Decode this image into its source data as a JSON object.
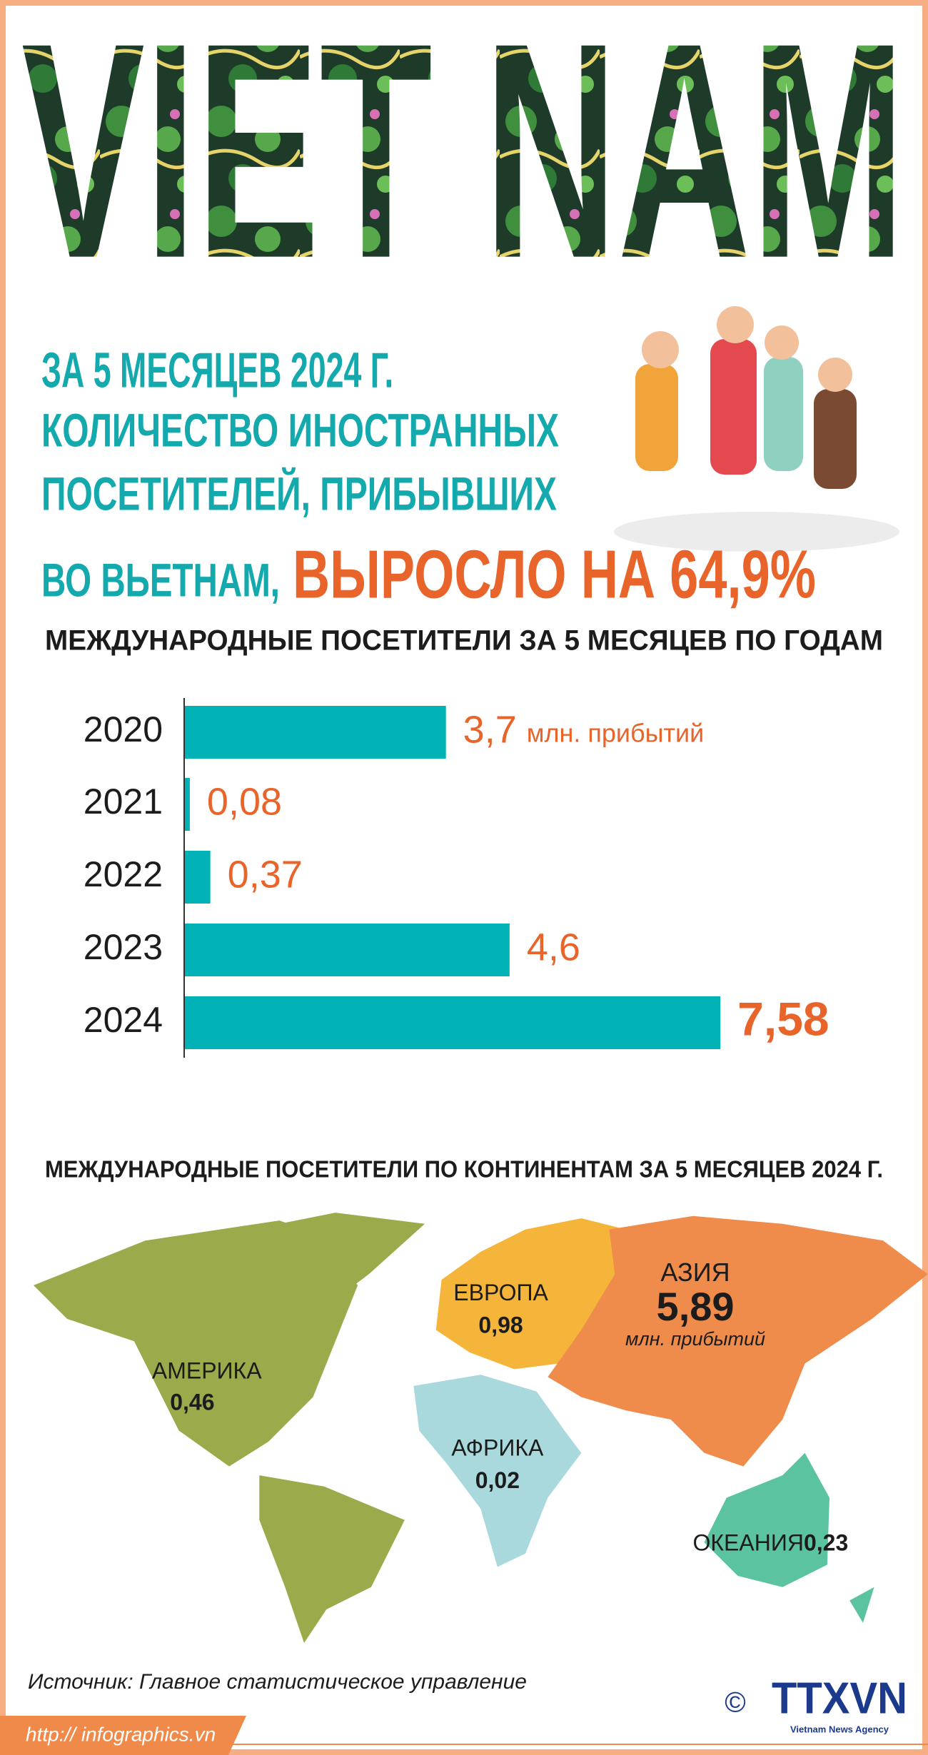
{
  "header": {
    "logo_text": "VIET NAM",
    "line1": "ЗА 5 МЕСЯЦЕВ 2024 Г.",
    "line2": "КОЛИЧЕСТВО ИНОСТРАННЫХ",
    "line3": "ПОСЕТИТЕЛЕЙ, ПРИБЫВШИХ",
    "line4": "ВО ВЬЕТНАМ,",
    "highlight": "ВЫРОСЛО НА 64,9%"
  },
  "chart_data": {
    "type": "bar",
    "orientation": "horizontal",
    "title": "МЕЖДУНАРОДНЫЕ ПОСЕТИТЕЛИ ЗА 5 МЕСЯЦЕВ ПО ГОДАМ",
    "categories": [
      "2020",
      "2021",
      "2022",
      "2023",
      "2024"
    ],
    "values": [
      3.7,
      0.08,
      0.37,
      4.6,
      7.58
    ],
    "value_labels": [
      "3,7",
      "0,08",
      "0,37",
      "4,6",
      "7,58"
    ],
    "unit_label": "млн. прибытий",
    "color": "#00b2b5",
    "label_color": "#e8642a",
    "xlim": [
      0,
      10
    ]
  },
  "map": {
    "title": "МЕЖДУНАРОДНЫЕ ПОСЕТИТЕЛИ ПО КОНТИНЕНТАМ ЗА 5 МЕСЯЦЕВ 2024 Г.",
    "unit_label": "млн. прибытий",
    "regions": [
      {
        "name": "АМЕРИКА",
        "value": 0.46,
        "value_label": "0,46",
        "color": "#9bab4b"
      },
      {
        "name": "ЕВРОПА",
        "value": 0.98,
        "value_label": "0,98",
        "color": "#f5b53b"
      },
      {
        "name": "АЗИЯ",
        "value": 5.89,
        "value_label": "5,89",
        "color": "#ef8c4b"
      },
      {
        "name": "АФРИКА",
        "value": 0.02,
        "value_label": "0,02",
        "color": "#a9d9dd"
      },
      {
        "name": "ОКЕАНИЯ",
        "value": 0.23,
        "value_label": "0,23",
        "color": "#5cc3a0"
      }
    ]
  },
  "footer": {
    "source": "Источник: Главное статистическое управление",
    "url": "http:// infographics.vn",
    "copyright": "©",
    "agency": "TTXVN",
    "agency_sub": "Vietnam News Agency"
  }
}
